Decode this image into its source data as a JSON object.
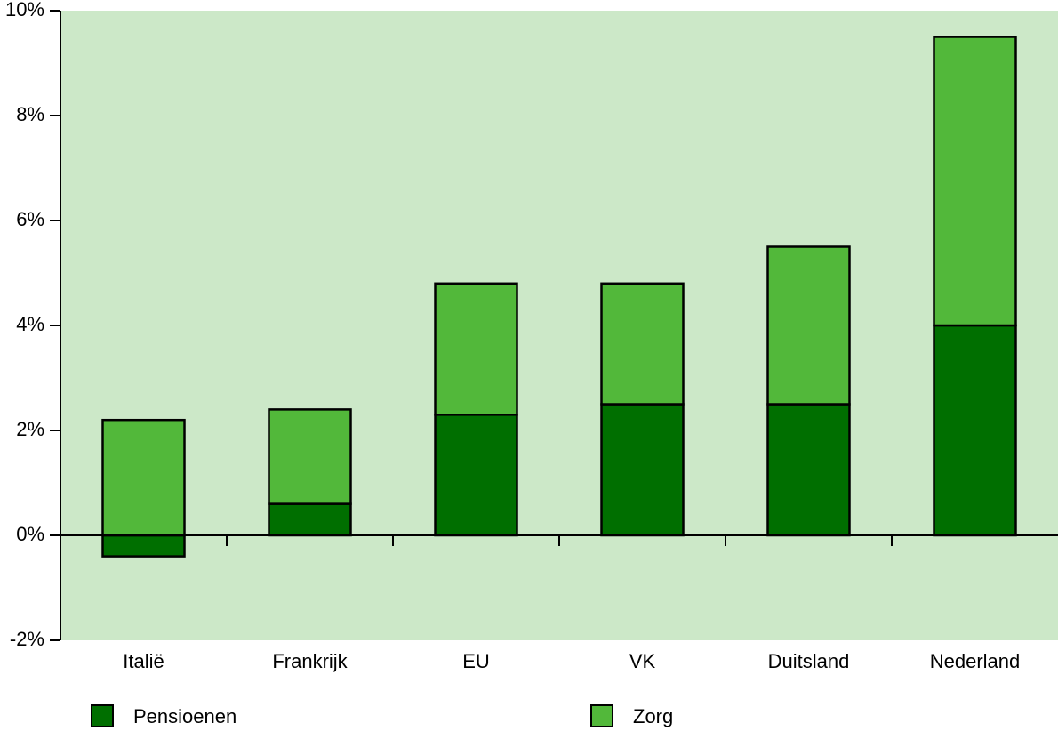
{
  "chart_data": {
    "type": "stacked-bar",
    "categories": [
      "Italië",
      "Frankrijk",
      "EU",
      "VK",
      "Duitsland",
      "Nederland"
    ],
    "series": [
      {
        "name": "Pensioenen",
        "color": "#006f00",
        "values": [
          -0.4,
          0.6,
          2.3,
          2.5,
          2.5,
          4.0
        ]
      },
      {
        "name": "Zorg",
        "color": "#52b83a",
        "values": [
          2.2,
          1.8,
          2.5,
          2.3,
          3.0,
          5.5
        ]
      }
    ],
    "ylim": [
      -2,
      10
    ],
    "yticks": [
      {
        "value": -2,
        "label": "-2%"
      },
      {
        "value": 0,
        "label": "0%"
      },
      {
        "value": 2,
        "label": "2%"
      },
      {
        "value": 4,
        "label": "4%"
      },
      {
        "value": 6,
        "label": "6%"
      },
      {
        "value": 8,
        "label": "8%"
      },
      {
        "value": 10,
        "label": "10%"
      }
    ],
    "plot_background": "#cce8c8"
  }
}
